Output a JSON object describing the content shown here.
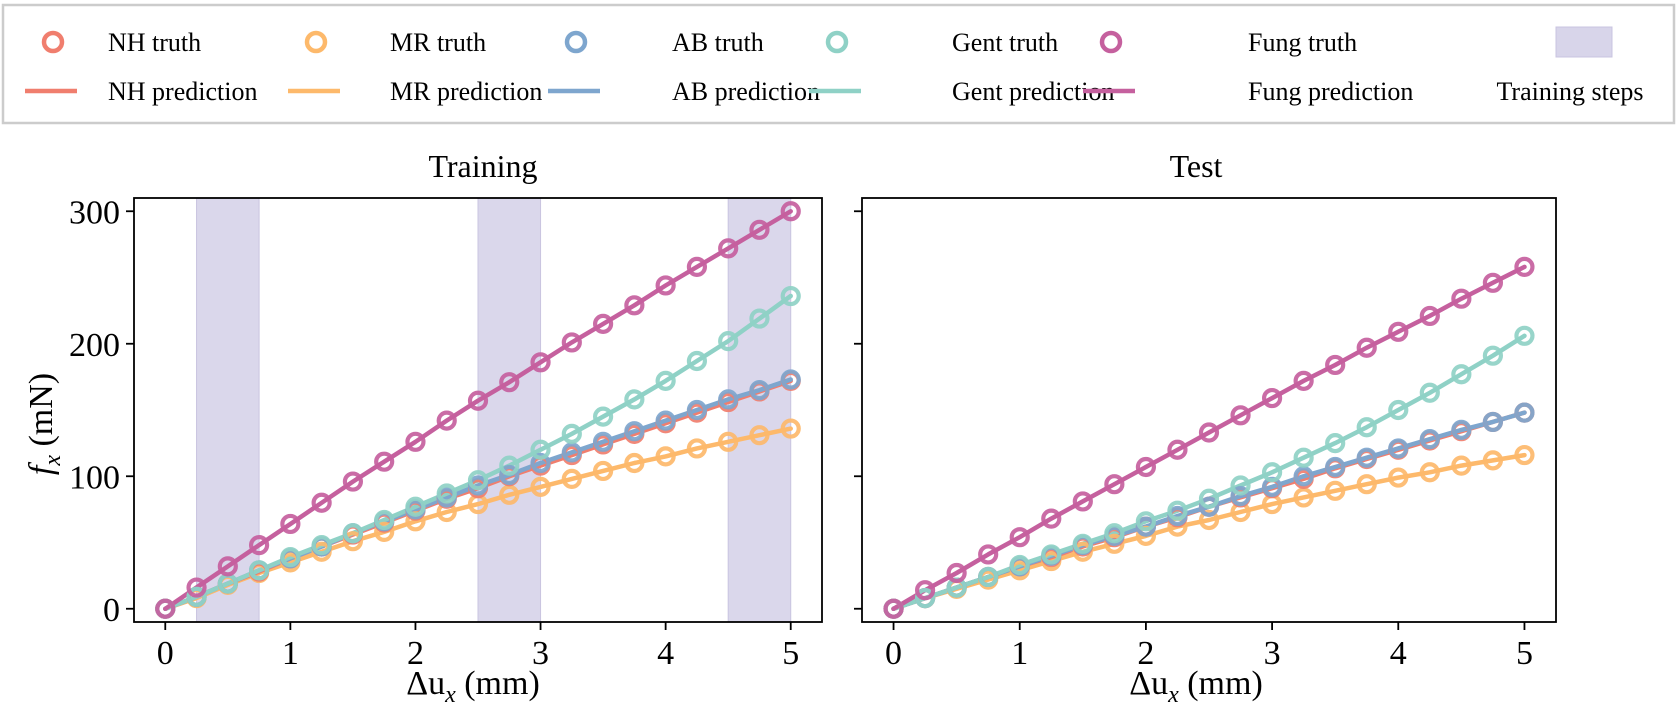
{
  "legend": {
    "entries": [
      {
        "label": "NH truth",
        "kind": "truth",
        "color": "#F07E6E"
      },
      {
        "label": "MR truth",
        "kind": "truth",
        "color": "#FDB96B"
      },
      {
        "label": "AB truth",
        "kind": "truth",
        "color": "#7EA6CE"
      },
      {
        "label": "Gent truth",
        "kind": "truth",
        "color": "#8FD1C6"
      },
      {
        "label": "Fung truth",
        "kind": "truth",
        "color": "#C5609E"
      },
      {
        "label": "",
        "kind": "none",
        "color": ""
      },
      {
        "label": "NH prediction",
        "kind": "prediction",
        "color": "#F07E6E"
      },
      {
        "label": "MR prediction",
        "kind": "prediction",
        "color": "#FDB96B"
      },
      {
        "label": "AB prediction",
        "kind": "prediction",
        "color": "#7EA6CE"
      },
      {
        "label": "Gent prediction",
        "kind": "prediction",
        "color": "#8FD1C6"
      },
      {
        "label": "Fung prediction",
        "kind": "prediction",
        "color": "#C5609E"
      },
      {
        "label": "Training steps",
        "kind": "patch",
        "color": "#D8D5EA"
      }
    ]
  },
  "colors": {
    "NH": "#F07E6E",
    "MR": "#FDB96B",
    "AB": "#7EA6CE",
    "Gent": "#8FD1C6",
    "Fung": "#C5609E",
    "training_steps": "#D8D5EA"
  },
  "chart_data": [
    {
      "type": "line",
      "title": "Training",
      "xlabel": "Δu",
      "xlabel_sub": "x",
      "xlabel_unit": " (mm)",
      "ylabel": "f",
      "ylabel_sub": "x",
      "ylabel_unit": " (mN)",
      "xlim": [
        -0.25,
        5.25
      ],
      "ylim": [
        -10,
        310
      ],
      "xticks": [
        0,
        1,
        2,
        3,
        4,
        5
      ],
      "yticks": [
        0,
        100,
        200,
        300
      ],
      "ytick_labels_visible": true,
      "grid": false,
      "shaded_x_ranges": [
        [
          0.25,
          0.75
        ],
        [
          2.5,
          3.0
        ],
        [
          4.5,
          5.0
        ]
      ],
      "x": [
        0,
        0.25,
        0.5,
        0.75,
        1.0,
        1.25,
        1.5,
        1.75,
        2.0,
        2.25,
        2.5,
        2.75,
        3.0,
        3.25,
        3.5,
        3.75,
        4.0,
        4.25,
        4.5,
        4.75,
        5.0
      ],
      "series": [
        {
          "name": "MR",
          "values": [
            0,
            8,
            18,
            27,
            35,
            43,
            51,
            58,
            66,
            73,
            79,
            86,
            92,
            98,
            104,
            110,
            115,
            121,
            126,
            131,
            136
          ]
        },
        {
          "name": "NH",
          "values": [
            0,
            9,
            19,
            28,
            38,
            47,
            56,
            65,
            74,
            83,
            91,
            100,
            108,
            116,
            124,
            132,
            140,
            148,
            156,
            164,
            172
          ]
        },
        {
          "name": "AB",
          "values": [
            0,
            9,
            19,
            29,
            38,
            47,
            57,
            66,
            75,
            84,
            93,
            101,
            110,
            118,
            126,
            134,
            142,
            150,
            158,
            165,
            173
          ]
        },
        {
          "name": "Gent",
          "values": [
            0,
            9,
            19,
            29,
            39,
            48,
            57,
            67,
            77,
            87,
            97,
            108,
            120,
            132,
            145,
            158,
            172,
            187,
            202,
            219,
            236
          ]
        },
        {
          "name": "Fung",
          "values": [
            0,
            16,
            32,
            48,
            64,
            80,
            96,
            111,
            126,
            142,
            157,
            171,
            186,
            201,
            215,
            229,
            244,
            258,
            272,
            286,
            300
          ]
        }
      ]
    },
    {
      "type": "line",
      "title": "Test",
      "xlabel": "Δu",
      "xlabel_sub": "x",
      "xlabel_unit": " (mm)",
      "xlim": [
        -0.25,
        5.25
      ],
      "ylim": [
        -10,
        310
      ],
      "xticks": [
        0,
        1,
        2,
        3,
        4,
        5
      ],
      "yticks": [
        0,
        100,
        200,
        300
      ],
      "ytick_labels_visible": false,
      "grid": false,
      "shaded_x_ranges": [],
      "x": [
        0,
        0.25,
        0.5,
        0.75,
        1.0,
        1.25,
        1.5,
        1.75,
        2.0,
        2.25,
        2.5,
        2.75,
        3.0,
        3.25,
        3.5,
        3.75,
        4.0,
        4.25,
        4.5,
        4.75,
        5.0
      ],
      "series": [
        {
          "name": "MR",
          "values": [
            0,
            8,
            15,
            22,
            29,
            36,
            43,
            49,
            55,
            62,
            67,
            73,
            79,
            84,
            89,
            94,
            99,
            103,
            108,
            112,
            116
          ]
        },
        {
          "name": "NH",
          "values": [
            0,
            8,
            16,
            24,
            32,
            39,
            47,
            54,
            62,
            69,
            77,
            84,
            91,
            98,
            106,
            113,
            120,
            127,
            134,
            141,
            148
          ]
        },
        {
          "name": "AB",
          "values": [
            0,
            8,
            16,
            24,
            32,
            40,
            48,
            55,
            62,
            70,
            77,
            85,
            92,
            100,
            107,
            114,
            121,
            128,
            135,
            141,
            148
          ]
        },
        {
          "name": "Gent",
          "values": [
            0,
            8,
            16,
            24,
            33,
            41,
            49,
            57,
            66,
            74,
            83,
            93,
            103,
            114,
            125,
            137,
            150,
            163,
            177,
            191,
            206
          ]
        },
        {
          "name": "Fung",
          "values": [
            0,
            14,
            27,
            41,
            54,
            68,
            81,
            94,
            107,
            120,
            133,
            146,
            159,
            172,
            184,
            197,
            209,
            221,
            234,
            246,
            258
          ]
        }
      ]
    }
  ]
}
